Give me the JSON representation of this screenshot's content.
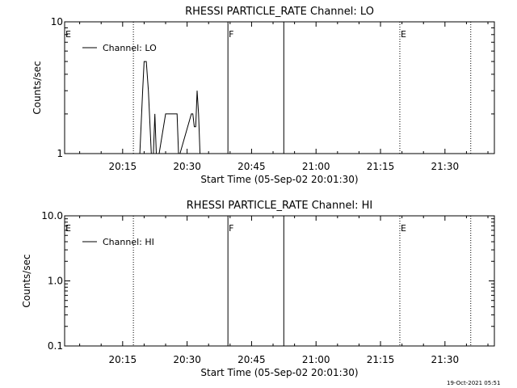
{
  "footer_timestamp": "19-Oct-2021 05:51",
  "chart_data": [
    {
      "type": "line",
      "title": "RHESSI PARTICLE_RATE Channel: LO",
      "xlabel": "Start Time (05-Sep-02 20:01:30)",
      "ylabel": "Counts/sec",
      "y_scale": "log",
      "ylim": [
        1,
        10
      ],
      "y_ticks": [
        {
          "v": 1,
          "label": "1"
        },
        {
          "v": 10,
          "label": "10"
        }
      ],
      "xlim": [
        "20:01:30",
        "21:41:30"
      ],
      "x_ticks": [
        {
          "t": "20:15:00",
          "label": "20:15"
        },
        {
          "t": "20:30:00",
          "label": "20:30"
        },
        {
          "t": "20:45:00",
          "label": "20:45"
        },
        {
          "t": "21:00:00",
          "label": "21:00"
        },
        {
          "t": "21:15:00",
          "label": "21:15"
        },
        {
          "t": "21:30:00",
          "label": "21:30"
        }
      ],
      "legend": {
        "placement": "top-left",
        "entries": [
          "Channel: LO"
        ]
      },
      "markers": [
        {
          "time": "20:01:30",
          "label": "E",
          "style": "none"
        },
        {
          "time": "20:17:30",
          "label": "",
          "style": "dotted"
        },
        {
          "time": "20:39:30",
          "label": "F",
          "style": "solid"
        },
        {
          "time": "20:52:30",
          "label": "",
          "style": "solid"
        },
        {
          "time": "21:19:30",
          "label": "E",
          "style": "dotted"
        },
        {
          "time": "21:36:00",
          "label": "",
          "style": "dotted"
        }
      ],
      "series": [
        {
          "name": "Channel: LO",
          "x": [
            "20:19:00",
            "20:19:40",
            "20:20:00",
            "20:20:30",
            "20:21:00",
            "20:21:40",
            "20:22:10",
            "20:22:30",
            "20:22:50",
            "20:23:10",
            "20:23:30",
            "20:25:00",
            "20:25:30",
            "20:27:40",
            "20:28:00",
            "20:28:20",
            "20:31:00",
            "20:31:20",
            "20:31:40",
            "20:32:00",
            "20:32:20",
            "20:32:40",
            "20:33:00",
            "20:33:20",
            "20:33:40"
          ],
          "y": [
            1,
            3,
            5,
            5,
            3,
            1,
            1,
            2,
            1,
            1,
            1,
            2,
            2,
            2,
            1,
            1,
            2,
            2,
            1.6,
            1.6,
            3,
            2,
            1,
            1,
            1
          ]
        }
      ]
    },
    {
      "type": "line",
      "title": "RHESSI PARTICLE_RATE Channel: HI",
      "xlabel": "Start Time (05-Sep-02 20:01:30)",
      "ylabel": "Counts/sec",
      "y_scale": "log",
      "ylim": [
        0.1,
        10
      ],
      "y_ticks": [
        {
          "v": 0.1,
          "label": "0.1"
        },
        {
          "v": 1,
          "label": "1.0"
        },
        {
          "v": 10,
          "label": "10.0"
        }
      ],
      "xlim": [
        "20:01:30",
        "21:41:30"
      ],
      "x_ticks": [
        {
          "t": "20:15:00",
          "label": "20:15"
        },
        {
          "t": "20:30:00",
          "label": "20:30"
        },
        {
          "t": "20:45:00",
          "label": "20:45"
        },
        {
          "t": "21:00:00",
          "label": "21:00"
        },
        {
          "t": "21:15:00",
          "label": "21:15"
        },
        {
          "t": "21:30:00",
          "label": "21:30"
        }
      ],
      "legend": {
        "placement": "top-left",
        "entries": [
          "Channel: HI"
        ]
      },
      "markers": [
        {
          "time": "20:01:30",
          "label": "E",
          "style": "none"
        },
        {
          "time": "20:17:30",
          "label": "",
          "style": "dotted"
        },
        {
          "time": "20:39:30",
          "label": "F",
          "style": "solid"
        },
        {
          "time": "20:52:30",
          "label": "",
          "style": "solid"
        },
        {
          "time": "21:19:30",
          "label": "E",
          "style": "dotted"
        },
        {
          "time": "21:36:00",
          "label": "",
          "style": "dotted"
        }
      ],
      "series": [
        {
          "name": "Channel: HI",
          "x": [],
          "y": []
        }
      ]
    }
  ]
}
